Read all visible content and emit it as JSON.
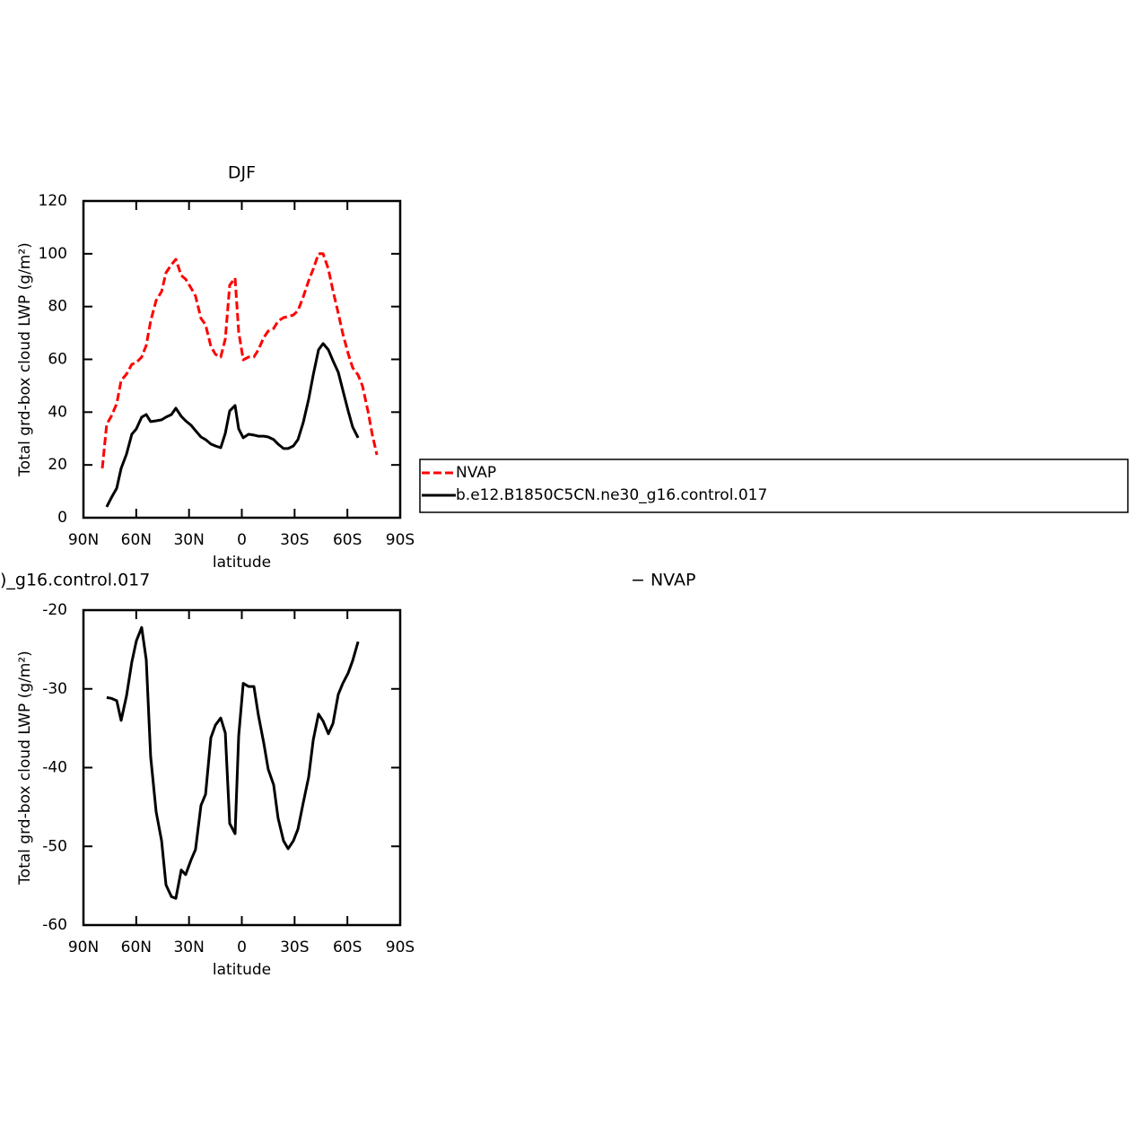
{
  "chart_data": [
    {
      "type": "line",
      "title": "DJF",
      "xlabel": "latitude",
      "ylabel": "Total grd-box cloud LWP (g/m²)",
      "x": [
        79.3,
        76.8,
        74.2,
        71.1,
        68.6,
        65.5,
        62.5,
        59.9,
        56.9,
        54.3,
        51.8,
        48.7,
        45.6,
        43.1,
        40.0,
        37.5,
        34.4,
        31.9,
        28.8,
        26.3,
        23.2,
        20.6,
        17.6,
        15.0,
        12.0,
        9.4,
        6.9,
        3.8,
        1.8,
        -0.8,
        -3.8,
        -6.9,
        -9.4,
        -12.5,
        -15.0,
        -18.1,
        -20.6,
        -23.7,
        -26.3,
        -29.3,
        -31.9,
        -34.9,
        -38.0,
        -40.6,
        -43.6,
        -46.2,
        -49.2,
        -51.8,
        -54.8,
        -57.4,
        -60.4,
        -63.0,
        -66.1,
        -68.6,
        -71.7,
        -74.2,
        -76.8
      ],
      "series": [
        {
          "name": "NVAP",
          "color": "#ff0000",
          "line_style": "dashed",
          "values": [
            18.7,
            35.4,
            38.4,
            43.2,
            52.0,
            54.4,
            58.1,
            58.8,
            60.9,
            65.3,
            74.5,
            82.3,
            85.7,
            92.8,
            95.9,
            97.9,
            91.8,
            90.4,
            87.0,
            84.0,
            75.5,
            73.1,
            65.0,
            61.9,
            60.9,
            67.7,
            88.1,
            90.8,
            70.4,
            59.8,
            60.9,
            60.9,
            63.6,
            68.3,
            70.7,
            71.7,
            74.5,
            75.8,
            76.2,
            76.8,
            78.5,
            83.6,
            89.8,
            94.2,
            100.0,
            100.0,
            94.2,
            86.0,
            77.5,
            69.7,
            62.2,
            56.8,
            54.1,
            49.9,
            40.4,
            31.3,
            23.8
          ]
        },
        {
          "name": "b.e12.B1850C5CN.ne30_g16.control.017",
          "color": "#000000",
          "line_style": "solid",
          "values": [
            null,
            4.1,
            7.5,
            11.2,
            18.7,
            24.1,
            31.6,
            33.7,
            38.1,
            39.1,
            36.4,
            36.7,
            37.1,
            38.1,
            39.1,
            41.5,
            38.4,
            36.7,
            35.0,
            33.0,
            30.6,
            29.6,
            27.9,
            27.2,
            26.5,
            32.0,
            40.5,
            42.5,
            33.7,
            30.3,
            31.6,
            31.3,
            30.9,
            30.9,
            30.6,
            29.6,
            27.9,
            26.2,
            26.2,
            27.2,
            29.6,
            36.0,
            44.9,
            54.1,
            63.6,
            66.0,
            63.6,
            59.5,
            55.1,
            48.3,
            40.5,
            34.3,
            30.3,
            null,
            null,
            null,
            null
          ]
        }
      ],
      "xlim": [
        90,
        -90
      ],
      "xticks": [
        {
          "value": 90,
          "label": "90N"
        },
        {
          "value": 60,
          "label": "60N"
        },
        {
          "value": 30,
          "label": "30N"
        },
        0,
        {
          "value": -30,
          "label": "30S"
        },
        {
          "value": -60,
          "label": "60S"
        },
        {
          "value": -90,
          "label": "90S"
        }
      ],
      "ylim": [
        0,
        120
      ],
      "yticks": [
        0,
        20,
        40,
        60,
        80,
        100,
        120
      ],
      "legend": "right"
    },
    {
      "type": "line",
      "subtitle_left": ")_g16.control.017",
      "subtitle_right": "− NVAP",
      "xlabel": "latitude",
      "ylabel": "Total grd-box cloud LWP (g/m²)",
      "x": [
        76.8,
        74.2,
        71.1,
        68.6,
        65.5,
        62.5,
        59.9,
        56.9,
        54.3,
        51.8,
        48.7,
        45.6,
        43.1,
        40.0,
        37.5,
        34.4,
        31.9,
        28.8,
        26.3,
        23.2,
        20.6,
        17.6,
        15.0,
        12.0,
        9.4,
        6.9,
        3.8,
        1.8,
        -0.8,
        -3.8,
        -6.9,
        -9.4,
        -12.5,
        -15.0,
        -18.1,
        -20.6,
        -23.7,
        -26.3,
        -29.3,
        -31.9,
        -34.9,
        -38.0,
        -40.6,
        -43.6,
        -46.2,
        -49.2,
        -51.8,
        -54.8,
        -57.4,
        -60.4,
        -63.0,
        -66.1
      ],
      "series": [
        {
          "color": "#000000",
          "line_style": "solid",
          "values": [
            -31.1,
            -31.2,
            -31.5,
            -34.0,
            -30.9,
            -26.6,
            -23.9,
            -22.2,
            -26.3,
            -38.6,
            -45.6,
            -49.3,
            -54.9,
            -56.4,
            -56.6,
            -53.0,
            -53.6,
            -51.7,
            -50.4,
            -44.8,
            -43.4,
            -36.2,
            -34.6,
            -33.7,
            -35.6,
            -47.1,
            -48.4,
            -36.0,
            -29.3,
            -29.7,
            -29.7,
            -33.3,
            -36.9,
            -40.2,
            -42.2,
            -46.4,
            -49.3,
            -50.3,
            -49.3,
            -47.8,
            -44.5,
            -41.2,
            -36.5,
            -33.2,
            -34.1,
            -35.7,
            -34.4,
            -30.7,
            -29.3,
            -28.0,
            -26.4,
            -24.0
          ]
        }
      ],
      "xlim": [
        90,
        -90
      ],
      "xticks": [
        {
          "value": 90,
          "label": "90N"
        },
        {
          "value": 60,
          "label": "60N"
        },
        {
          "value": 30,
          "label": "30N"
        },
        0,
        {
          "value": -30,
          "label": "30S"
        },
        {
          "value": -60,
          "label": "60S"
        },
        {
          "value": -90,
          "label": "90S"
        }
      ],
      "ylim": [
        -60,
        -20
      ],
      "yticks": [
        -60,
        -50,
        -40,
        -30,
        -20
      ]
    }
  ]
}
